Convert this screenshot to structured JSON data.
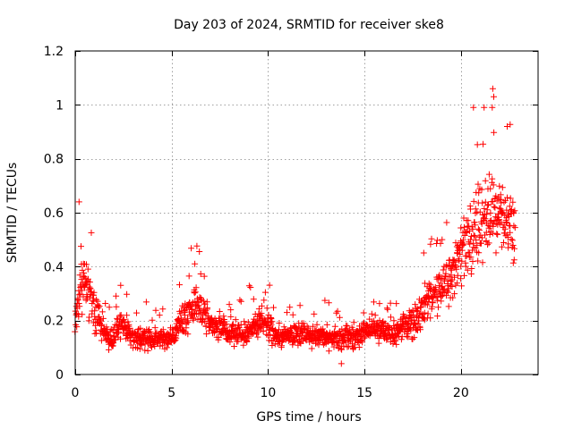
{
  "chart_data": {
    "type": "scatter",
    "title": "Day 203 of 2024, SRMTID for receiver ske8",
    "xlabel": "GPS time / hours",
    "ylabel": "SRMTID / TECUs",
    "xlim": [
      0,
      24
    ],
    "ylim": [
      0,
      1.2
    ],
    "xticks": [
      0,
      5,
      10,
      15,
      20
    ],
    "xtick_labels": [
      "0",
      "5",
      "10",
      "15",
      "20"
    ],
    "yticks": [
      0,
      0.2,
      0.4,
      0.6,
      0.8,
      1,
      1.2
    ],
    "ytick_labels": [
      "0",
      "0.2",
      "0.4",
      "0.6",
      "0.8",
      "1",
      "1.2"
    ],
    "grid": true,
    "marker": "+",
    "color": "#ff0000",
    "series": [
      {
        "name": "SRMTID ske8",
        "profile": [
          {
            "x": 0.0,
            "mean": 0.18,
            "spread": 0.05
          },
          {
            "x": 0.3,
            "mean": 0.35,
            "spread": 0.15
          },
          {
            "x": 0.6,
            "mean": 0.33,
            "spread": 0.15
          },
          {
            "x": 1.0,
            "mean": 0.25,
            "spread": 0.1
          },
          {
            "x": 1.5,
            "mean": 0.14,
            "spread": 0.06
          },
          {
            "x": 2.0,
            "mean": 0.13,
            "spread": 0.05
          },
          {
            "x": 2.3,
            "mean": 0.2,
            "spread": 0.08
          },
          {
            "x": 3.0,
            "mean": 0.14,
            "spread": 0.05
          },
          {
            "x": 4.0,
            "mean": 0.13,
            "spread": 0.05
          },
          {
            "x": 5.0,
            "mean": 0.14,
            "spread": 0.05
          },
          {
            "x": 5.5,
            "mean": 0.2,
            "spread": 0.07
          },
          {
            "x": 6.2,
            "mean": 0.26,
            "spread": 0.1
          },
          {
            "x": 7.0,
            "mean": 0.19,
            "spread": 0.06
          },
          {
            "x": 8.0,
            "mean": 0.15,
            "spread": 0.05
          },
          {
            "x": 9.0,
            "mean": 0.16,
            "spread": 0.06
          },
          {
            "x": 9.7,
            "mean": 0.2,
            "spread": 0.08
          },
          {
            "x": 10.5,
            "mean": 0.14,
            "spread": 0.05
          },
          {
            "x": 12.0,
            "mean": 0.15,
            "spread": 0.05
          },
          {
            "x": 13.5,
            "mean": 0.13,
            "spread": 0.05
          },
          {
            "x": 14.5,
            "mean": 0.14,
            "spread": 0.06
          },
          {
            "x": 15.5,
            "mean": 0.17,
            "spread": 0.06
          },
          {
            "x": 16.5,
            "mean": 0.15,
            "spread": 0.05
          },
          {
            "x": 17.5,
            "mean": 0.2,
            "spread": 0.07
          },
          {
            "x": 18.5,
            "mean": 0.28,
            "spread": 0.09
          },
          {
            "x": 19.5,
            "mean": 0.35,
            "spread": 0.12
          },
          {
            "x": 20.0,
            "mean": 0.45,
            "spread": 0.16
          },
          {
            "x": 20.5,
            "mean": 0.5,
            "spread": 0.18
          },
          {
            "x": 21.0,
            "mean": 0.55,
            "spread": 0.2
          },
          {
            "x": 21.5,
            "mean": 0.6,
            "spread": 0.2
          },
          {
            "x": 22.0,
            "mean": 0.58,
            "spread": 0.18
          },
          {
            "x": 22.7,
            "mean": 0.55,
            "spread": 0.15
          }
        ],
        "x_start": 0,
        "x_end": 22.8,
        "n_points": 1700,
        "outliers": [
          {
            "x": 21.65,
            "y": 1.06
          },
          {
            "x": 21.7,
            "y": 1.03
          },
          {
            "x": 21.2,
            "y": 0.99
          },
          {
            "x": 22.4,
            "y": 0.92
          },
          {
            "x": 0.2,
            "y": 0.64
          },
          {
            "x": 6.2,
            "y": 0.41
          },
          {
            "x": 13.8,
            "y": 0.04
          }
        ]
      }
    ]
  }
}
